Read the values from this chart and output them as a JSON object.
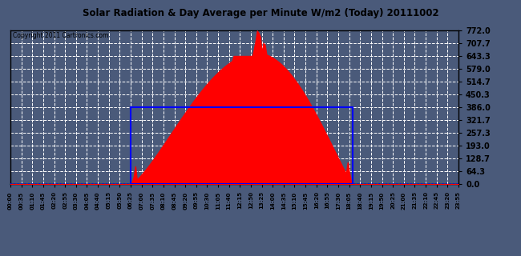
{
  "title": "Solar Radiation & Day Average per Minute W/m2 (Today) 20111002",
  "copyright": "Copyright 2011 Cartronics.com",
  "background_color": "#4a5a7a",
  "plot_bg_color": "#4a5a7a",
  "yticks": [
    0.0,
    64.3,
    128.7,
    193.0,
    257.3,
    321.7,
    386.0,
    450.3,
    514.7,
    579.0,
    643.3,
    707.7,
    772.0
  ],
  "ymax": 772.0,
  "ymin": 0.0,
  "day_avg": 386.0,
  "sunrise_min": 385,
  "sunset_min": 1095,
  "total_points": 288,
  "minutes_per_point": 5,
  "peak_value": 772.0,
  "peak_min": 790
}
